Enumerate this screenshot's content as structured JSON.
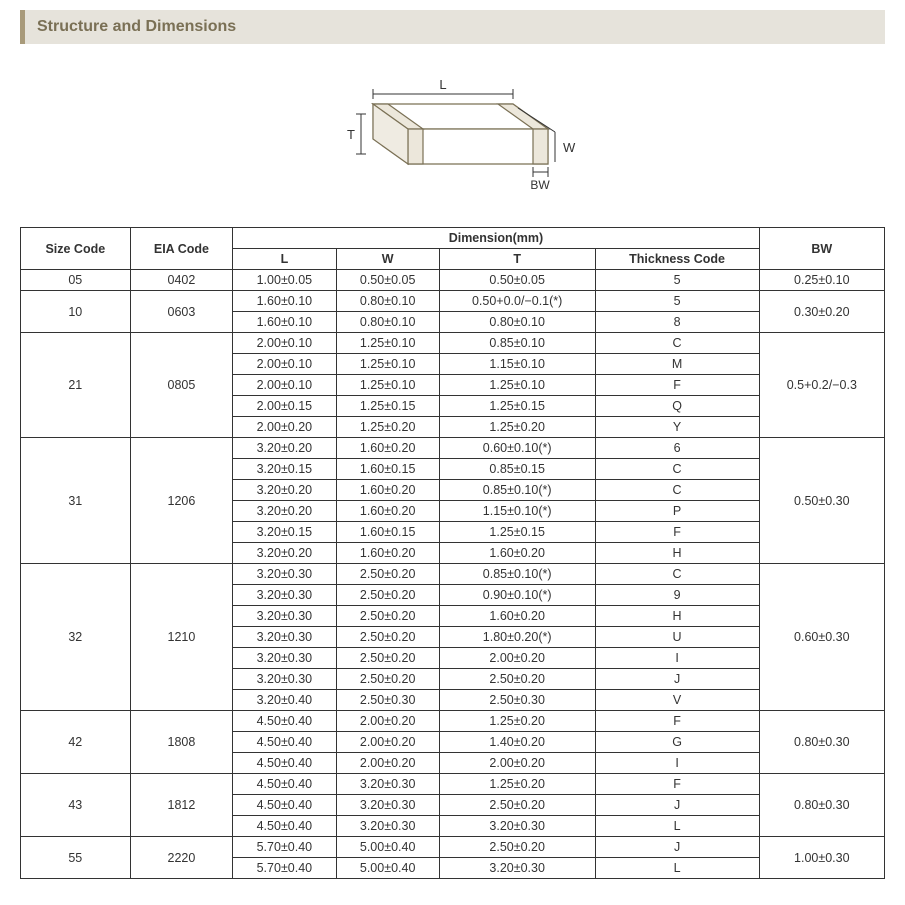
{
  "header": {
    "title": "Structure and Dimensions"
  },
  "diagram": {
    "labels": {
      "L": "L",
      "W": "W",
      "T": "T",
      "BW": "BW"
    },
    "stroke_color": "#7a7055",
    "line_width": 1.2,
    "dim_arrow_color": "#333"
  },
  "table": {
    "header": {
      "size_code": "Size Code",
      "eia_code": "EIA Code",
      "dimension_group": "Dimension(mm)",
      "L": "L",
      "W": "W",
      "T": "T",
      "thickness_code": "Thickness  Code",
      "BW": "BW"
    },
    "groups": [
      {
        "size": "05",
        "eia": "0402",
        "bw": "0.25±0.10",
        "rows": [
          [
            "1.00±0.05",
            "0.50±0.05",
            "0.50±0.05",
            "5"
          ]
        ]
      },
      {
        "size": "10",
        "eia": "0603",
        "bw": "0.30±0.20",
        "rows": [
          [
            "1.60±0.10",
            "0.80±0.10",
            "0.50+0.0/−0.1(*)",
            "5"
          ],
          [
            "1.60±0.10",
            "0.80±0.10",
            "0.80±0.10",
            "8"
          ]
        ]
      },
      {
        "size": "21",
        "eia": "0805",
        "bw": "0.5+0.2/−0.3",
        "rows": [
          [
            "2.00±0.10",
            "1.25±0.10",
            "0.85±0.10",
            "C"
          ],
          [
            "2.00±0.10",
            "1.25±0.10",
            "1.15±0.10",
            "M"
          ],
          [
            "2.00±0.10",
            "1.25±0.10",
            "1.25±0.10",
            "F"
          ],
          [
            "2.00±0.15",
            "1.25±0.15",
            "1.25±0.15",
            "Q"
          ],
          [
            "2.00±0.20",
            "1.25±0.20",
            "1.25±0.20",
            "Y"
          ]
        ]
      },
      {
        "size": "31",
        "eia": "1206",
        "bw": "0.50±0.30",
        "rows": [
          [
            "3.20±0.20",
            "1.60±0.20",
            "0.60±0.10(*)",
            "6"
          ],
          [
            "3.20±0.15",
            "1.60±0.15",
            "0.85±0.15",
            "C"
          ],
          [
            "3.20±0.20",
            "1.60±0.20",
            "0.85±0.10(*)",
            "C"
          ],
          [
            "3.20±0.20",
            "1.60±0.20",
            "1.15±0.10(*)",
            "P"
          ],
          [
            "3.20±0.15",
            "1.60±0.15",
            "1.25±0.15",
            "F"
          ],
          [
            "3.20±0.20",
            "1.60±0.20",
            "1.60±0.20",
            "H"
          ]
        ]
      },
      {
        "size": "32",
        "eia": "1210",
        "bw": "0.60±0.30",
        "rows": [
          [
            "3.20±0.30",
            "2.50±0.20",
            "0.85±0.10(*)",
            "C"
          ],
          [
            "3.20±0.30",
            "2.50±0.20",
            "0.90±0.10(*)",
            "9"
          ],
          [
            "3.20±0.30",
            "2.50±0.20",
            "1.60±0.20",
            "H"
          ],
          [
            "3.20±0.30",
            "2.50±0.20",
            "1.80±0.20(*)",
            "U"
          ],
          [
            "3.20±0.30",
            "2.50±0.20",
            "2.00±0.20",
            "I"
          ],
          [
            "3.20±0.30",
            "2.50±0.20",
            "2.50±0.20",
            "J"
          ],
          [
            "3.20±0.40",
            "2.50±0.30",
            "2.50±0.30",
            "V"
          ]
        ]
      },
      {
        "size": "42",
        "eia": "1808",
        "bw": "0.80±0.30",
        "rows": [
          [
            "4.50±0.40",
            "2.00±0.20",
            "1.25±0.20",
            "F"
          ],
          [
            "4.50±0.40",
            "2.00±0.20",
            "1.40±0.20",
            "G"
          ],
          [
            "4.50±0.40",
            "2.00±0.20",
            "2.00±0.20",
            "I"
          ]
        ]
      },
      {
        "size": "43",
        "eia": "1812",
        "bw": "0.80±0.30",
        "rows": [
          [
            "4.50±0.40",
            "3.20±0.30",
            "1.25±0.20",
            "F"
          ],
          [
            "4.50±0.40",
            "3.20±0.30",
            "2.50±0.20",
            "J"
          ],
          [
            "4.50±0.40",
            "3.20±0.30",
            "3.20±0.30",
            "L"
          ]
        ]
      },
      {
        "size": "55",
        "eia": "2220",
        "bw": "1.00±0.30",
        "rows": [
          [
            "5.70±0.40",
            "5.00±0.40",
            "2.50±0.20",
            "J"
          ],
          [
            "5.70±0.40",
            "5.00±0.40",
            "3.20±0.30",
            "L"
          ]
        ]
      }
    ]
  },
  "style": {
    "header_bg": "#e6e3db",
    "header_border": "#a89a7a",
    "header_text": "#7a7055",
    "border_color": "#333333",
    "font_family": "Arial, sans-serif",
    "body_fontsize": 13,
    "table_fontsize": 12.5
  }
}
